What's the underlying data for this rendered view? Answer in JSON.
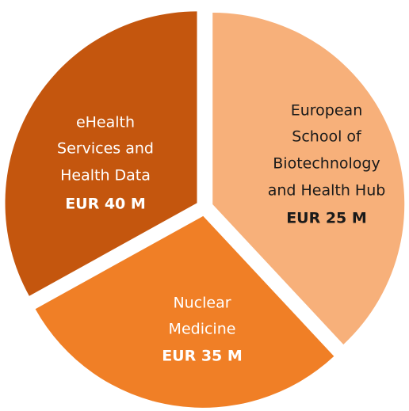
{
  "segments": [
    {
      "label": [
        "eHealth",
        "Services and",
        "Health Data"
      ],
      "value": "EUR 40 M"
    },
    {
      "label": [
        "European",
        "School of",
        "Biotechnology",
        "and Health Hub"
      ],
      "value": "EUR 25 M"
    },
    {
      "label": [
        "Nuclear",
        "Medicine"
      ],
      "value": "EUR 35 M"
    }
  ]
}
